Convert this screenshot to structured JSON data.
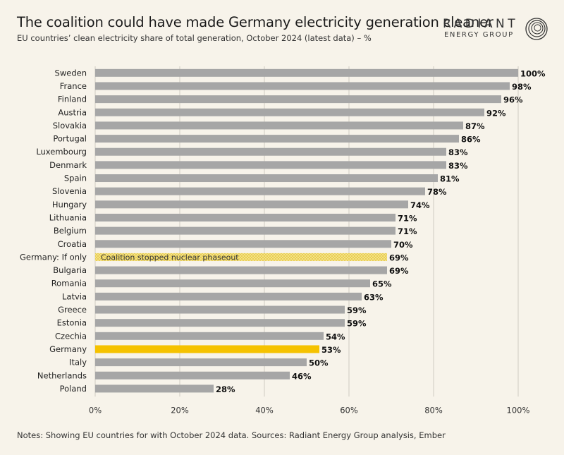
{
  "header": {
    "title": "The coalition could have made Germany electricity generation cleaner",
    "subtitle": "EU countries’ clean electricity share of total generation, October 2024 (latest data) – %"
  },
  "logo": {
    "line1": "RADIANT",
    "line2": "ENERGY GROUP"
  },
  "notes": "Notes: Showing EU countries for with October 2024 data. Sources: Radiant Energy Group analysis, Ember",
  "colors": {
    "bar": "#a6a6a6",
    "highlight": "#f5c200",
    "hatched": "#f1dc70",
    "grid": "#cfcbc2",
    "background": "#f7f3ea"
  },
  "chart_data": {
    "type": "bar",
    "orientation": "horizontal",
    "categories": [
      "Sweden",
      "France",
      "Finland",
      "Austria",
      "Slovakia",
      "Portugal",
      "Luxembourg",
      "Denmark",
      "Spain",
      "Slovenia",
      "Hungary",
      "Lithuania",
      "Belgium",
      "Croatia",
      "Germany: If only",
      "Bulgaria",
      "Romania",
      "Latvia",
      "Greece",
      "Estonia",
      "Czechia",
      "Germany",
      "Italy",
      "Netherlands",
      "Poland"
    ],
    "values": [
      100,
      98,
      96,
      92,
      87,
      86,
      83,
      83,
      81,
      78,
      74,
      71,
      71,
      70,
      69,
      69,
      65,
      63,
      59,
      59,
      54,
      53,
      50,
      46,
      28
    ],
    "data_labels": [
      "100%",
      "98%",
      "96%",
      "92%",
      "87%",
      "86%",
      "83%",
      "83%",
      "81%",
      "78%",
      "74%",
      "71%",
      "71%",
      "70%",
      "69%",
      "69%",
      "65%",
      "63%",
      "59%",
      "59%",
      "54%",
      "53%",
      "50%",
      "46%",
      "28%"
    ],
    "highlight": {
      "Germany": "highlight",
      "Germany: If only": "hatched"
    },
    "annotations": [
      {
        "category": "Germany: If only",
        "text": "Coalition stopped nuclear phaseout"
      }
    ],
    "xlim": [
      0,
      100
    ],
    "x_ticks": [
      0,
      20,
      40,
      60,
      80,
      100
    ],
    "x_tick_labels": [
      "0%",
      "20%",
      "40%",
      "60%",
      "80%",
      "100%"
    ],
    "grid": "vertical",
    "legend": "none"
  }
}
